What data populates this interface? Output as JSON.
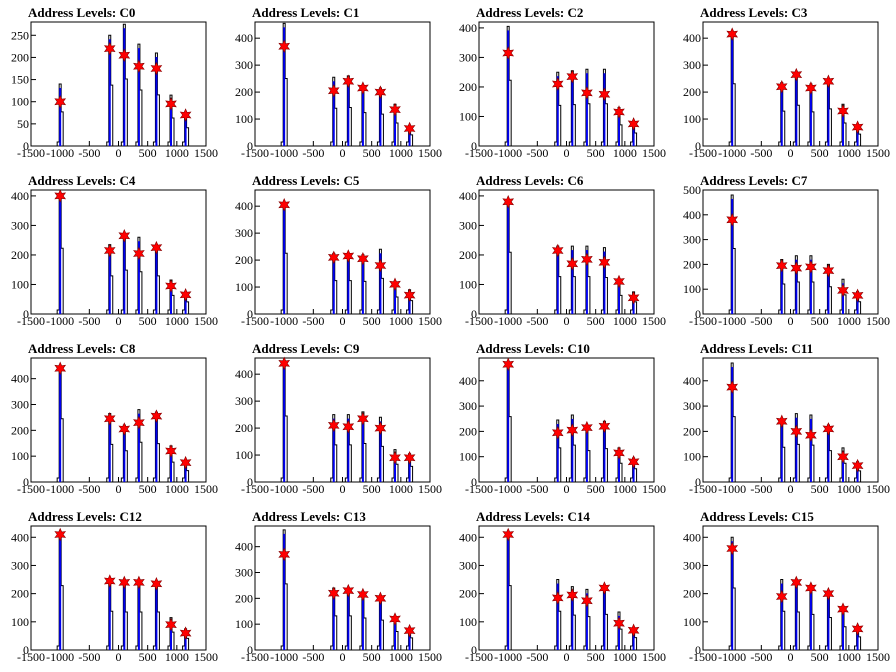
{
  "chart_data": [
    {
      "type": "bar",
      "title": "Address Levels: C0",
      "xlim": [
        -1500,
        1500
      ],
      "ylim": [
        0,
        280
      ],
      "yticks": [
        0,
        50,
        100,
        150,
        200,
        250
      ],
      "xticks": [
        -1500,
        -1000,
        -500,
        0,
        500,
        1000,
        1500
      ],
      "x": [
        -1000,
        -150,
        100,
        350,
        650,
        900,
        1150
      ],
      "values": [
        140,
        250,
        275,
        230,
        210,
        115,
        75
      ],
      "markers": [
        100,
        220,
        205,
        180,
        175,
        95,
        70
      ]
    },
    {
      "type": "bar",
      "title": "Address Levels: C1",
      "xlim": [
        -1500,
        1500
      ],
      "ylim": [
        0,
        460
      ],
      "yticks": [
        0,
        100,
        200,
        300,
        400
      ],
      "xticks": [
        -1500,
        -1000,
        -500,
        0,
        500,
        1000,
        1500
      ],
      "x": [
        -1000,
        -150,
        100,
        350,
        650,
        900,
        1150
      ],
      "values": [
        455,
        255,
        260,
        225,
        215,
        155,
        75
      ],
      "markers": [
        370,
        205,
        240,
        215,
        200,
        135,
        65
      ]
    },
    {
      "type": "bar",
      "title": "Address Levels: C2",
      "xlim": [
        -1500,
        1500
      ],
      "ylim": [
        0,
        420
      ],
      "yticks": [
        0,
        100,
        200,
        300,
        400
      ],
      "xticks": [
        -1500,
        -1000,
        -500,
        0,
        500,
        1000,
        1500
      ],
      "x": [
        -1000,
        -150,
        100,
        350,
        650,
        900,
        1150
      ],
      "values": [
        405,
        250,
        255,
        260,
        260,
        130,
        80
      ],
      "markers": [
        315,
        210,
        235,
        180,
        175,
        115,
        75
      ]
    },
    {
      "type": "bar",
      "title": "Address Levels: C3",
      "xlim": [
        -1500,
        1500
      ],
      "ylim": [
        0,
        460
      ],
      "yticks": [
        0,
        100,
        200,
        300,
        400
      ],
      "xticks": [
        -1500,
        -1000,
        -500,
        0,
        500,
        1000,
        1500
      ],
      "x": [
        -1000,
        -150,
        100,
        350,
        650,
        900,
        1150
      ],
      "values": [
        420,
        235,
        275,
        230,
        250,
        155,
        80
      ],
      "markers": [
        415,
        220,
        265,
        215,
        240,
        130,
        70
      ]
    },
    {
      "type": "bar",
      "title": "Address Levels: C4",
      "xlim": [
        -1500,
        1500
      ],
      "ylim": [
        0,
        420
      ],
      "yticks": [
        0,
        100,
        200,
        300,
        400
      ],
      "xticks": [
        -1500,
        -1000,
        -500,
        0,
        500,
        1000,
        1500
      ],
      "x": [
        -1000,
        -150,
        100,
        350,
        650,
        900,
        1150
      ],
      "values": [
        405,
        235,
        270,
        260,
        235,
        115,
        75
      ],
      "markers": [
        400,
        215,
        265,
        205,
        225,
        95,
        65
      ]
    },
    {
      "type": "bar",
      "title": "Address Levels: C5",
      "xlim": [
        -1500,
        1500
      ],
      "ylim": [
        0,
        460
      ],
      "yticks": [
        0,
        100,
        200,
        300,
        400
      ],
      "xticks": [
        -1500,
        -1000,
        -500,
        0,
        500,
        1000,
        1500
      ],
      "x": [
        -1000,
        -150,
        100,
        350,
        650,
        900,
        1150
      ],
      "values": [
        410,
        225,
        225,
        220,
        240,
        115,
        90
      ],
      "markers": [
        405,
        210,
        215,
        205,
        180,
        110,
        70
      ]
    },
    {
      "type": "bar",
      "title": "Address Levels: C6",
      "xlim": [
        -1500,
        1500
      ],
      "ylim": [
        0,
        420
      ],
      "yticks": [
        0,
        100,
        200,
        300,
        400
      ],
      "xticks": [
        -1500,
        -1000,
        -500,
        0,
        500,
        1000,
        1500
      ],
      "x": [
        -1000,
        -150,
        100,
        350,
        650,
        900,
        1150
      ],
      "values": [
        380,
        230,
        230,
        230,
        225,
        115,
        75
      ],
      "markers": [
        380,
        215,
        170,
        185,
        175,
        110,
        55
      ]
    },
    {
      "type": "bar",
      "title": "Address Levels: C7",
      "xlim": [
        -1500,
        1500
      ],
      "ylim": [
        0,
        500
      ],
      "yticks": [
        0,
        100,
        200,
        300,
        400,
        500
      ],
      "xticks": [
        -1500,
        -1000,
        -500,
        0,
        500,
        1000,
        1500
      ],
      "x": [
        -1000,
        -150,
        100,
        350,
        650,
        900,
        1150
      ],
      "values": [
        480,
        220,
        235,
        235,
        200,
        140,
        90
      ],
      "markers": [
        380,
        195,
        185,
        190,
        175,
        95,
        75
      ]
    },
    {
      "type": "bar",
      "title": "Address Levels: C8",
      "xlim": [
        -1500,
        1500
      ],
      "ylim": [
        0,
        480
      ],
      "yticks": [
        0,
        100,
        200,
        300,
        400
      ],
      "xticks": [
        -1500,
        -1000,
        -500,
        0,
        500,
        1000,
        1500
      ],
      "x": [
        -1000,
        -150,
        100,
        350,
        650,
        900,
        1150
      ],
      "values": [
        445,
        265,
        220,
        280,
        270,
        140,
        80
      ],
      "markers": [
        440,
        245,
        205,
        230,
        255,
        120,
        75
      ]
    },
    {
      "type": "bar",
      "title": "Address Levels: C9",
      "xlim": [
        -1500,
        1500
      ],
      "ylim": [
        0,
        460
      ],
      "yticks": [
        0,
        100,
        200,
        300,
        400
      ],
      "xticks": [
        -1500,
        -1000,
        -500,
        0,
        500,
        1000,
        1500
      ],
      "x": [
        -1000,
        -150,
        100,
        350,
        650,
        900,
        1150
      ],
      "values": [
        445,
        250,
        250,
        260,
        240,
        120,
        105
      ],
      "markers": [
        440,
        210,
        205,
        235,
        200,
        90,
        90
      ]
    },
    {
      "type": "bar",
      "title": "Address Levels: C10",
      "xlim": [
        -1500,
        1500
      ],
      "ylim": [
        0,
        490
      ],
      "yticks": [
        0,
        100,
        200,
        300,
        400
      ],
      "xticks": [
        -1500,
        -1000,
        -500,
        0,
        500,
        1000,
        1500
      ],
      "x": [
        -1000,
        -150,
        100,
        350,
        650,
        900,
        1150
      ],
      "values": [
        470,
        245,
        265,
        225,
        240,
        135,
        95
      ],
      "markers": [
        465,
        195,
        205,
        215,
        220,
        115,
        80
      ]
    },
    {
      "type": "bar",
      "title": "Address Levels: C11",
      "xlim": [
        -1500,
        1500
      ],
      "ylim": [
        0,
        490
      ],
      "yticks": [
        0,
        100,
        200,
        300,
        400
      ],
      "xticks": [
        -1500,
        -1000,
        -500,
        0,
        500,
        1000,
        1500
      ],
      "x": [
        -1000,
        -150,
        100,
        350,
        650,
        900,
        1150
      ],
      "values": [
        470,
        250,
        270,
        265,
        225,
        135,
        80
      ],
      "markers": [
        375,
        240,
        200,
        185,
        210,
        100,
        65
      ]
    },
    {
      "type": "bar",
      "title": "Address Levels: C12",
      "xlim": [
        -1500,
        1500
      ],
      "ylim": [
        0,
        440
      ],
      "yticks": [
        0,
        100,
        200,
        300,
        400
      ],
      "xticks": [
        -1500,
        -1000,
        -500,
        0,
        500,
        1000,
        1500
      ],
      "x": [
        -1000,
        -150,
        100,
        350,
        650,
        900,
        1150
      ],
      "values": [
        415,
        250,
        245,
        245,
        245,
        115,
        75
      ],
      "markers": [
        410,
        245,
        240,
        240,
        235,
        90,
        60
      ]
    },
    {
      "type": "bar",
      "title": "Address Levels: C13",
      "xlim": [
        -1500,
        1500
      ],
      "ylim": [
        0,
        480
      ],
      "yticks": [
        0,
        100,
        200,
        300,
        400
      ],
      "xticks": [
        -1500,
        -1000,
        -500,
        0,
        500,
        1000,
        1500
      ],
      "x": [
        -1000,
        -150,
        100,
        350,
        650,
        900,
        1150
      ],
      "values": [
        465,
        240,
        240,
        225,
        210,
        130,
        85
      ],
      "markers": [
        370,
        220,
        230,
        215,
        200,
        120,
        75
      ]
    },
    {
      "type": "bar",
      "title": "Address Levels: C14",
      "xlim": [
        -1500,
        1500
      ],
      "ylim": [
        0,
        440
      ],
      "yticks": [
        0,
        100,
        200,
        300,
        400
      ],
      "xticks": [
        -1500,
        -1000,
        -500,
        0,
        500,
        1000,
        1500
      ],
      "x": [
        -1000,
        -150,
        100,
        350,
        650,
        900,
        1150
      ],
      "values": [
        415,
        250,
        225,
        215,
        230,
        135,
        80
      ],
      "markers": [
        410,
        185,
        195,
        175,
        220,
        95,
        70
      ]
    },
    {
      "type": "bar",
      "title": "Address Levels: C15",
      "xlim": [
        -1500,
        1500
      ],
      "ylim": [
        0,
        440
      ],
      "yticks": [
        0,
        100,
        200,
        300,
        400
      ],
      "xticks": [
        -1500,
        -1000,
        -500,
        0,
        500,
        1000,
        1500
      ],
      "x": [
        -1000,
        -150,
        100,
        350,
        650,
        900,
        1150
      ],
      "values": [
        400,
        250,
        245,
        230,
        210,
        150,
        85
      ],
      "markers": [
        360,
        190,
        240,
        220,
        200,
        145,
        75
      ]
    }
  ],
  "colors": {
    "bar": "#0000ee",
    "outline": "#000000",
    "marker": "#ff0000",
    "marker_edge": "#880000"
  }
}
